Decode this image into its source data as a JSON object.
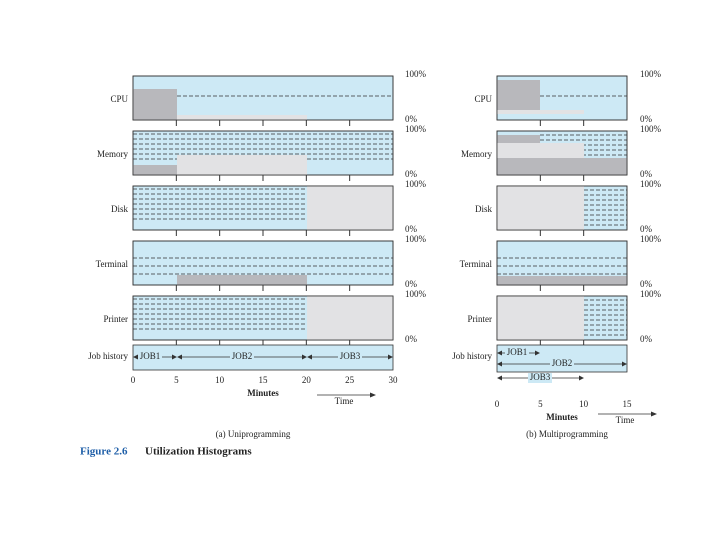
{
  "left": {
    "rows": [
      "CPU",
      "Memory",
      "Disk",
      "Terminal",
      "Printer",
      "Job history"
    ],
    "jobs": [
      "JOB1",
      "JOB2",
      "JOB3"
    ],
    "ticks": [
      "0",
      "5",
      "10",
      "15",
      "20",
      "25",
      "30"
    ],
    "axis_label": "Minutes",
    "time_label": "Time",
    "caption": "(a) Uniprogramming"
  },
  "right": {
    "rows": [
      "CPU",
      "Memory",
      "Disk",
      "Terminal",
      "Printer",
      "Job history"
    ],
    "jobs": [
      "JOB1",
      "JOB2",
      "JOB3"
    ],
    "ticks": [
      "0",
      "5",
      "10",
      "15"
    ],
    "axis_label": "Minutes",
    "time_label": "Time",
    "caption": "(b) Multiprogramming"
  },
  "scale": {
    "top": "100%",
    "bottom": "0%"
  },
  "figure": {
    "number": "Figure 2.6",
    "title": "Utilization Histograms"
  }
}
